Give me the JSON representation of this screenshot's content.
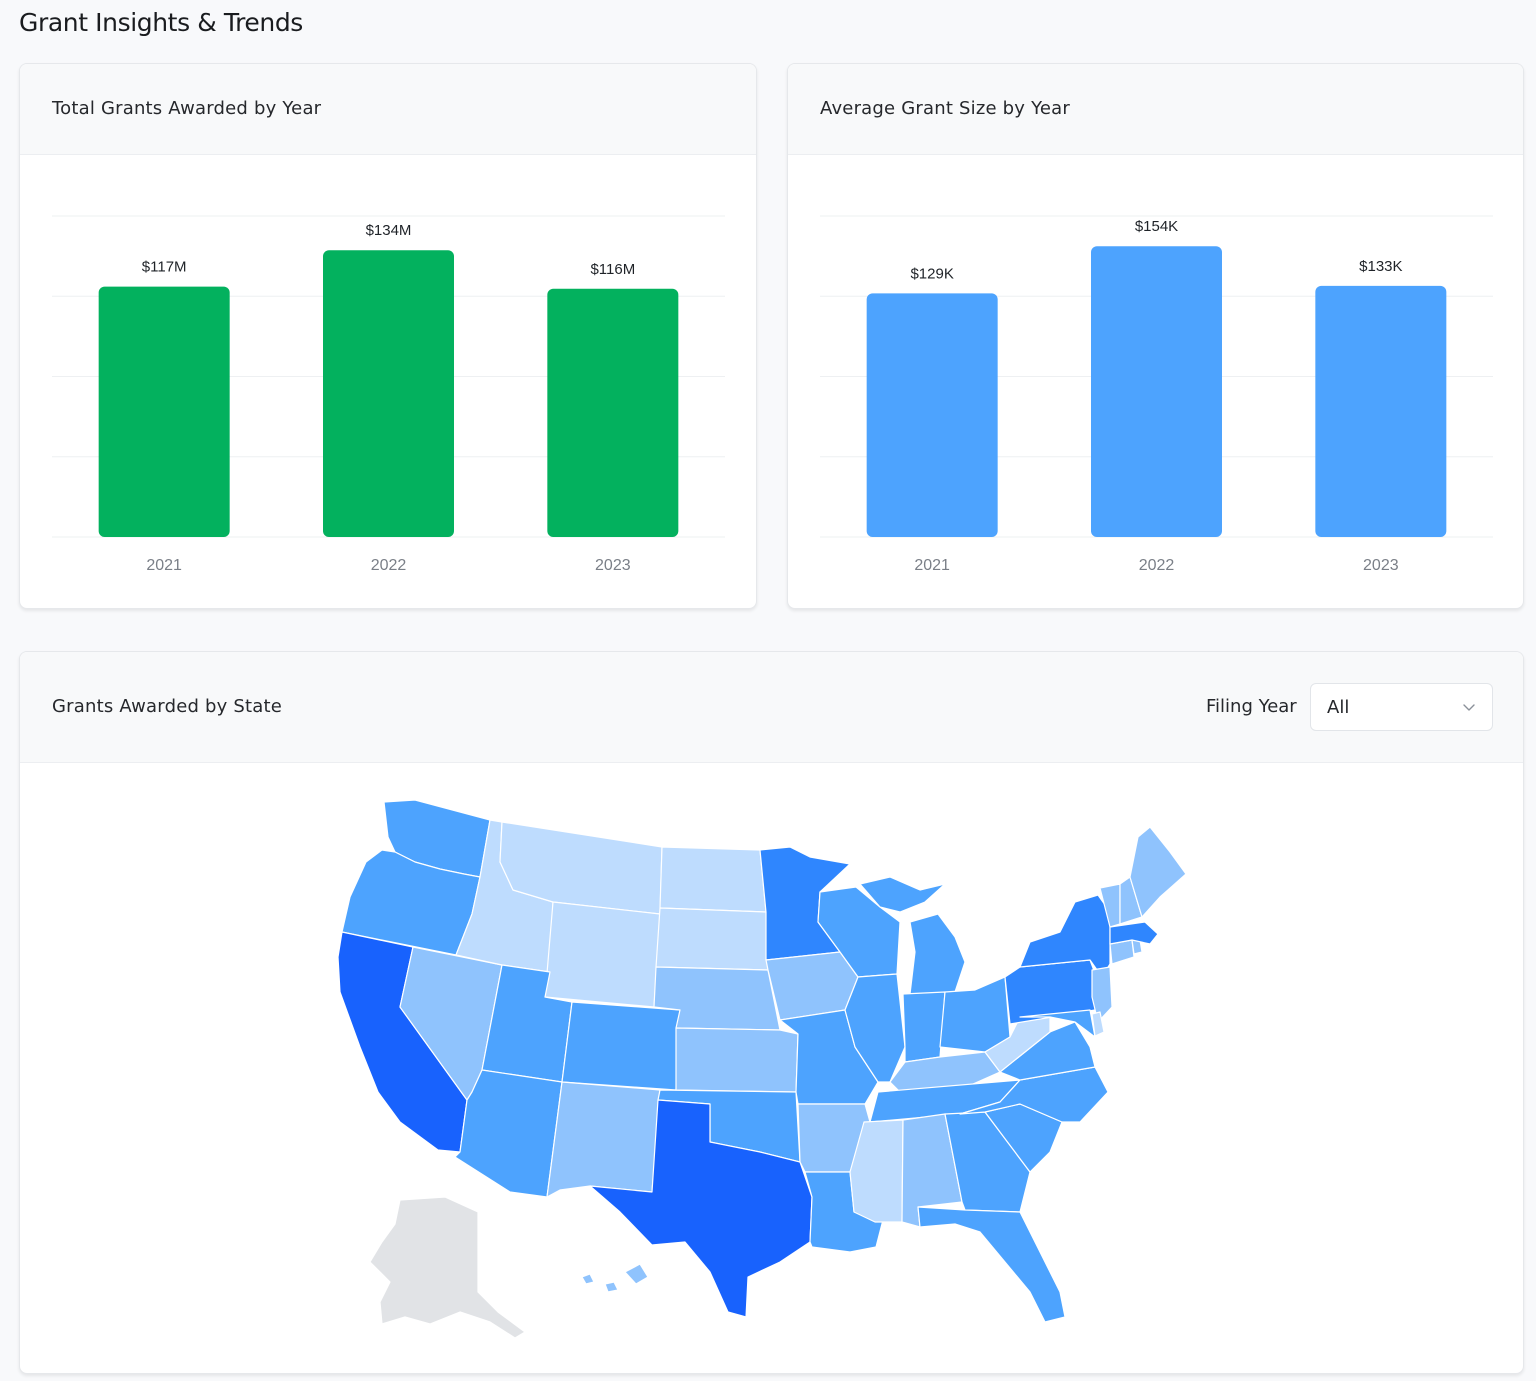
{
  "page": {
    "title": "Grant Insights & Trends"
  },
  "colors": {
    "green_bar": "#03b15e",
    "blue_bar": "#4da3fe",
    "grid": "#eef0f2",
    "map_lightest": "#bedcfe",
    "map_light": "#8fc3fd",
    "map_mid": "#4da3fe",
    "map_strong": "#2f86fe",
    "map_darkest": "#1862fd",
    "map_no_data": "#e1e3e6"
  },
  "cards": {
    "total": {
      "title": "Total Grants Awarded by Year"
    },
    "average": {
      "title": "Average Grant Size by Year"
    },
    "state": {
      "title": "Grants Awarded by State",
      "filter_label": "Filing Year",
      "filter_value": "All"
    }
  },
  "chart_data": [
    {
      "type": "bar",
      "title": "Total Grants Awarded by Year",
      "categories": [
        "2021",
        "2022",
        "2023"
      ],
      "values": [
        117,
        134,
        116
      ],
      "unit": "$M",
      "data_labels": [
        "$117M",
        "$134M",
        "$116M"
      ],
      "ylim": [
        0,
        150
      ],
      "grid": true
    },
    {
      "type": "bar",
      "title": "Average Grant Size by Year",
      "categories": [
        "2021",
        "2022",
        "2023"
      ],
      "values": [
        129,
        154,
        133
      ],
      "unit": "$K",
      "data_labels": [
        "$129K",
        "$154K",
        "$133K"
      ],
      "ylim": [
        0,
        170
      ],
      "grid": true
    }
  ],
  "map": {
    "type": "choropleth",
    "states": [
      {
        "name": "Washington",
        "level": 3
      },
      {
        "name": "Oregon",
        "level": 3
      },
      {
        "name": "California",
        "level": 5
      },
      {
        "name": "Nevada",
        "level": 2
      },
      {
        "name": "Idaho",
        "level": 1
      },
      {
        "name": "Montana",
        "level": 1
      },
      {
        "name": "Wyoming",
        "level": 1
      },
      {
        "name": "Utah",
        "level": 3
      },
      {
        "name": "Colorado",
        "level": 3
      },
      {
        "name": "Arizona",
        "level": 3
      },
      {
        "name": "New Mexico",
        "level": 2
      },
      {
        "name": "North Dakota",
        "level": 1
      },
      {
        "name": "South Dakota",
        "level": 1
      },
      {
        "name": "Nebraska",
        "level": 2
      },
      {
        "name": "Kansas",
        "level": 2
      },
      {
        "name": "Oklahoma",
        "level": 3
      },
      {
        "name": "Texas",
        "level": 5
      },
      {
        "name": "Minnesota",
        "level": 4
      },
      {
        "name": "Iowa",
        "level": 2
      },
      {
        "name": "Missouri",
        "level": 3
      },
      {
        "name": "Arkansas",
        "level": 2
      },
      {
        "name": "Louisiana",
        "level": 3
      },
      {
        "name": "Wisconsin",
        "level": 3
      },
      {
        "name": "Illinois",
        "level": 3
      },
      {
        "name": "Michigan",
        "level": 3
      },
      {
        "name": "Indiana",
        "level": 3
      },
      {
        "name": "Ohio",
        "level": 3
      },
      {
        "name": "Kentucky",
        "level": 2
      },
      {
        "name": "Tennessee",
        "level": 3
      },
      {
        "name": "Mississippi",
        "level": 1
      },
      {
        "name": "Alabama",
        "level": 2
      },
      {
        "name": "Georgia",
        "level": 3
      },
      {
        "name": "Florida",
        "level": 3
      },
      {
        "name": "South Carolina",
        "level": 3
      },
      {
        "name": "North Carolina",
        "level": 3
      },
      {
        "name": "Virginia",
        "level": 3
      },
      {
        "name": "West Virginia",
        "level": 1
      },
      {
        "name": "Pennsylvania",
        "level": 4
      },
      {
        "name": "New York",
        "level": 4
      },
      {
        "name": "New Jersey",
        "level": 2
      },
      {
        "name": "Maryland",
        "level": 3
      },
      {
        "name": "Delaware",
        "level": 1
      },
      {
        "name": "Connecticut",
        "level": 2
      },
      {
        "name": "Rhode Island",
        "level": 2
      },
      {
        "name": "Massachusetts",
        "level": 4
      },
      {
        "name": "Vermont",
        "level": 2
      },
      {
        "name": "New Hampshire",
        "level": 2
      },
      {
        "name": "Maine",
        "level": 2
      },
      {
        "name": "Alaska",
        "level": 0
      },
      {
        "name": "Hawaii",
        "level": 2
      }
    ]
  }
}
